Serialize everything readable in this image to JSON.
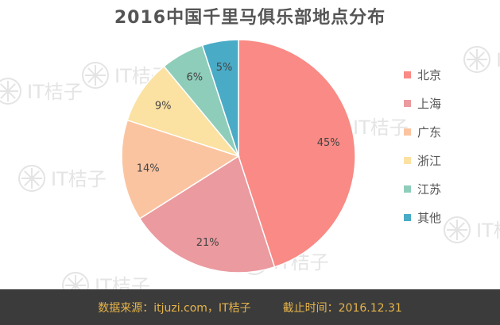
{
  "title": "2016中国千里马俱乐部地点分布",
  "chart_data": {
    "type": "pie",
    "title": "2016中国千里马俱乐部地点分布",
    "categories": [
      "北京",
      "上海",
      "广东",
      "浙江",
      "江苏",
      "其他"
    ],
    "values": [
      45,
      21,
      14,
      9,
      6,
      5
    ],
    "value_labels": [
      "45%",
      "21%",
      "14%",
      "9%",
      "6%",
      "5%"
    ],
    "colors": [
      "#f98a85",
      "#eb9a9f",
      "#fbc4a0",
      "#fbe1a2",
      "#8ecdb9",
      "#4aabc6"
    ],
    "start_angle": "12 o'clock",
    "direction": "clockwise",
    "legend": "right"
  },
  "footer": {
    "source": "数据来源：itjuzi.com，IT桔子",
    "deadline": "截止时间：2016.12.31"
  },
  "watermark": "IT桔子"
}
